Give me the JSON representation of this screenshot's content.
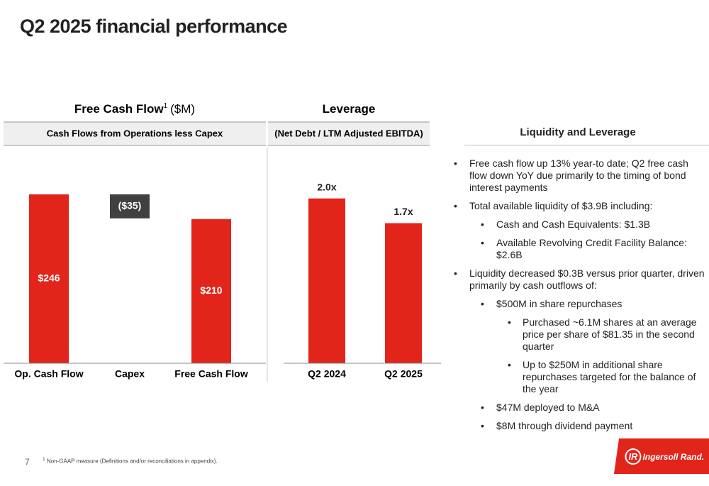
{
  "title": "Q2 2025 financial performance",
  "chart_data": [
    {
      "type": "waterfall",
      "title": "Free Cash Flow",
      "title_sup": "1",
      "title_unit": "($M)",
      "subtitle": "Cash Flows from Operations less Capex",
      "categories": [
        "Op. Cash Flow",
        "Capex",
        "Free Cash Flow"
      ],
      "values": [
        246,
        -35,
        210
      ],
      "value_labels": [
        "$246",
        "($35)",
        "$210"
      ],
      "color": "#e1251b",
      "negative_color": "#404040",
      "ylim": [
        0,
        312
      ]
    },
    {
      "type": "bar",
      "title": "Leverage",
      "subtitle": "(Net Debt / LTM Adjusted EBITDA)",
      "categories": [
        "Q2 2024",
        "Q2 2025"
      ],
      "values": [
        2.0,
        1.7
      ],
      "value_labels": [
        "2.0x",
        "1.7x"
      ],
      "color": "#e1251b",
      "ylim": [
        0,
        2.6
      ]
    }
  ],
  "liquidity": {
    "title": "Liquidity and Leverage",
    "bullets": [
      {
        "level": 0,
        "text": "Free cash flow up 13% year-to date; Q2 free cash flow down YoY due primarily to the timing of bond interest payments"
      },
      {
        "level": 0,
        "text": "Total available liquidity of $3.9B including:"
      },
      {
        "level": 1,
        "text": "Cash and Cash Equivalents: $1.3B"
      },
      {
        "level": 1,
        "text": "Available Revolving Credit Facility Balance: $2.6B"
      },
      {
        "level": 0,
        "text": "Liquidity decreased $0.3B versus prior quarter, driven primarily by cash outflows of:"
      },
      {
        "level": 1,
        "text": "$500M in share repurchases"
      },
      {
        "level": 2,
        "text": "Purchased ~6.1M shares at an average price per share of $81.35 in the second quarter"
      },
      {
        "level": 2,
        "text": "Up to $250M in additional share repurchases targeted for the balance of the year"
      },
      {
        "level": 1,
        "text": "$47M deployed to M&A"
      },
      {
        "level": 1,
        "text": "$8M through dividend payment"
      }
    ]
  },
  "footer": {
    "page": "7",
    "footnote_sup": "1",
    "footnote": "Non-GAAP measure (Definitions and/or reconciliations in appendix).",
    "logo_mark": "IR",
    "logo_text": "Ingersoll Rand."
  }
}
